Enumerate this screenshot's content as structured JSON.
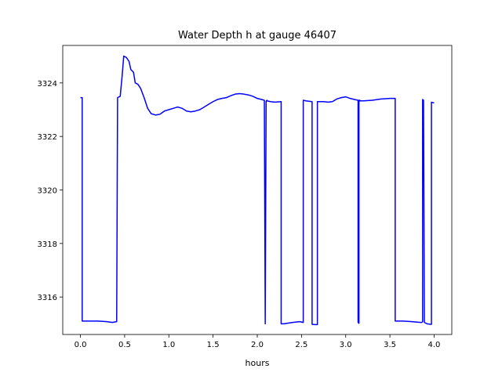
{
  "chart_data": {
    "type": "line",
    "title": "Water Depth h at gauge 46407",
    "xlabel": "hours",
    "ylabel": "",
    "xlim": [
      -0.2,
      4.2
    ],
    "ylim": [
      3314.6,
      3325.4
    ],
    "xticks": [
      0.0,
      0.5,
      1.0,
      1.5,
      2.0,
      2.5,
      3.0,
      3.5,
      4.0
    ],
    "xtick_labels": [
      "0.0",
      "0.5",
      "1.0",
      "1.5",
      "2.0",
      "2.5",
      "3.0",
      "3.5",
      "4.0"
    ],
    "yticks": [
      3316,
      3318,
      3320,
      3322,
      3324
    ],
    "ytick_labels": [
      "3316",
      "3318",
      "3320",
      "3322",
      "3324"
    ],
    "grid": false,
    "series": [
      {
        "name": "",
        "color": "#0000ff",
        "x": [
          0.0,
          0.02,
          0.02,
          0.1,
          0.2,
          0.3,
          0.36,
          0.41,
          0.42,
          0.42,
          0.45,
          0.47,
          0.49,
          0.52,
          0.55,
          0.57,
          0.6,
          0.62,
          0.65,
          0.68,
          0.72,
          0.76,
          0.8,
          0.85,
          0.9,
          0.95,
          1.0,
          1.05,
          1.1,
          1.15,
          1.2,
          1.25,
          1.3,
          1.35,
          1.4,
          1.45,
          1.5,
          1.55,
          1.6,
          1.65,
          1.7,
          1.75,
          1.8,
          1.85,
          1.9,
          1.95,
          2.0,
          2.05,
          2.08,
          2.09,
          2.09,
          2.1,
          2.11,
          2.11,
          2.15,
          2.2,
          2.27,
          2.27,
          2.3,
          2.4,
          2.48,
          2.52,
          2.52,
          2.55,
          2.62,
          2.62,
          2.65,
          2.68,
          2.68,
          2.75,
          2.8,
          2.85,
          2.9,
          2.95,
          3.0,
          3.05,
          3.1,
          3.14,
          3.14,
          3.15,
          3.15,
          3.16,
          3.16,
          3.2,
          3.3,
          3.4,
          3.5,
          3.56,
          3.56,
          3.65,
          3.75,
          3.85,
          3.86,
          3.87,
          3.87,
          3.88,
          3.89,
          3.89,
          3.92,
          3.96,
          3.97,
          3.97,
          4.0
        ],
        "y": [
          3323.45,
          3323.45,
          3315.1,
          3315.1,
          3315.1,
          3315.08,
          3315.05,
          3315.08,
          3323.4,
          3323.45,
          3323.5,
          3324.2,
          3325.0,
          3324.95,
          3324.8,
          3324.5,
          3324.4,
          3324.0,
          3323.95,
          3323.8,
          3323.45,
          3323.05,
          3322.85,
          3322.8,
          3322.83,
          3322.95,
          3323.0,
          3323.05,
          3323.1,
          3323.05,
          3322.95,
          3322.92,
          3322.95,
          3323.0,
          3323.1,
          3323.2,
          3323.3,
          3323.38,
          3323.42,
          3323.45,
          3323.52,
          3323.58,
          3323.6,
          3323.58,
          3323.55,
          3323.5,
          3323.42,
          3323.38,
          3323.35,
          3315.05,
          3315.0,
          3323.32,
          3323.35,
          3323.33,
          3323.3,
          3323.28,
          3323.3,
          3315.0,
          3315.0,
          3315.05,
          3315.08,
          3315.05,
          3323.35,
          3323.33,
          3323.3,
          3314.98,
          3314.97,
          3314.97,
          3323.3,
          3323.3,
          3323.28,
          3323.3,
          3323.4,
          3323.45,
          3323.48,
          3323.42,
          3323.38,
          3323.35,
          3315.05,
          3315.02,
          3323.35,
          3323.35,
          3323.33,
          3323.33,
          3323.35,
          3323.4,
          3323.42,
          3323.42,
          3315.1,
          3315.1,
          3315.08,
          3315.05,
          3315.05,
          3315.08,
          3323.38,
          3323.35,
          3315.05,
          3315.05,
          3315.0,
          3314.98,
          3314.98,
          3323.28,
          3323.25
        ]
      }
    ]
  }
}
